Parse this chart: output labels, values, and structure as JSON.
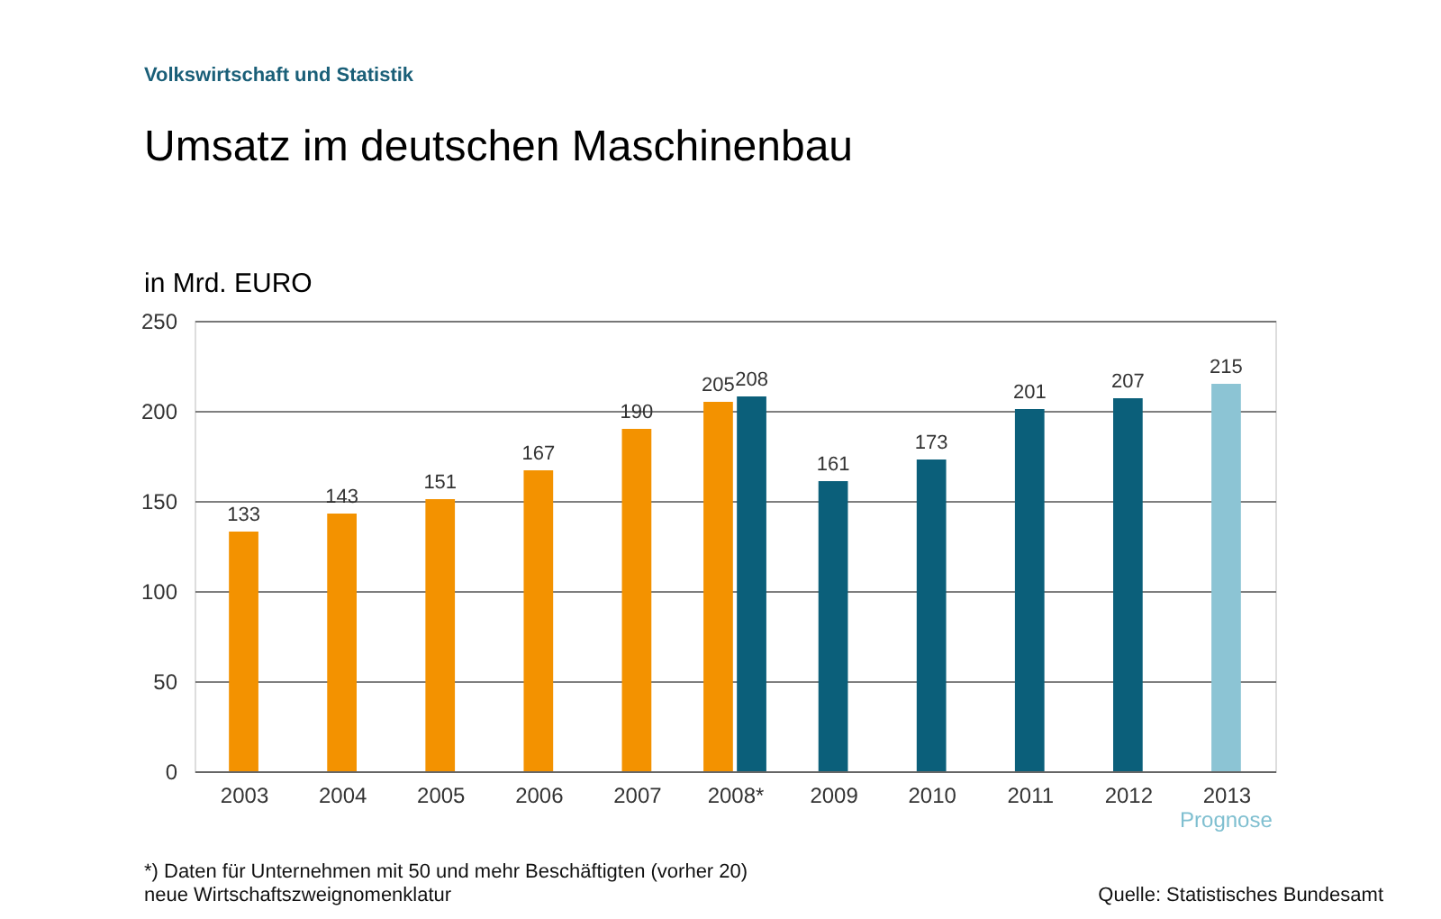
{
  "chart_data": {
    "type": "bar",
    "title": "Umsatz im deutschen Maschinenbau",
    "ylabel": "in Mrd. EURO",
    "categories": [
      "2003",
      "2004",
      "2005",
      "2006",
      "2007",
      "2008*",
      "2009",
      "2010",
      "2011",
      "2012",
      "2013"
    ],
    "series": [
      {
        "color": "#f39200",
        "values": [
          133,
          143,
          151,
          167,
          190,
          205,
          null,
          null,
          null,
          null,
          null
        ]
      },
      {
        "color": "#0b5f7a",
        "colors": [
          null,
          null,
          null,
          null,
          null,
          null,
          null,
          null,
          null,
          null,
          "#8cc4d4"
        ],
        "values": [
          null,
          null,
          null,
          null,
          null,
          208,
          161,
          173,
          201,
          207,
          215
        ]
      }
    ],
    "ylim": [
      0,
      250
    ],
    "yticks": [
      0,
      50,
      100,
      150,
      200,
      250
    ],
    "grid": "y",
    "data_labels": true,
    "annotations": [
      "Volkswirtschaft und Statistik",
      "Prognose",
      "*) Daten für Unternehmen mit 50 und mehr Beschäftigten (vorher 20)\n   neue Wirtschaftszweignomenklatur",
      "Quelle: Statistisches Bundesamt"
    ]
  }
}
